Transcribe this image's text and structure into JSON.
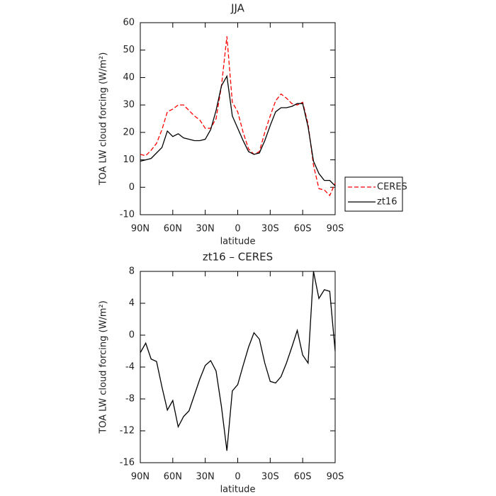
{
  "chart_data": [
    {
      "type": "line",
      "title": "JJA",
      "xlabel": "latitude",
      "ylabel": "TOA LW cloud forcing (W/m²)",
      "x": [
        90,
        85,
        80,
        75,
        70,
        65,
        60,
        55,
        50,
        45,
        40,
        35,
        30,
        25,
        20,
        15,
        10,
        5,
        0,
        -5,
        -10,
        -15,
        -20,
        -25,
        -30,
        -35,
        -40,
        -45,
        -50,
        -55,
        -60,
        -65,
        -70,
        -75,
        -80,
        -85,
        -90
      ],
      "xlim": [
        90,
        -90
      ],
      "xticks": [
        {
          "value": 90,
          "label": "90N"
        },
        {
          "value": 60,
          "label": "60N"
        },
        {
          "value": 30,
          "label": "30N"
        },
        0,
        {
          "value": -30,
          "label": "30S"
        },
        {
          "value": -60,
          "label": "60S"
        },
        {
          "value": -90,
          "label": "90S"
        }
      ],
      "ylim": [
        -10,
        60
      ],
      "yticks": [
        -10,
        0,
        10,
        20,
        30,
        40,
        50,
        60
      ],
      "legend": "right",
      "series": [
        {
          "name": "CERES",
          "color": "#ff0000",
          "line_style": "dashed",
          "values": [
            12,
            11.5,
            13.5,
            16,
            21,
            27.5,
            28.5,
            30,
            30,
            28,
            26,
            24.5,
            21.5,
            21.5,
            25,
            37,
            55,
            31,
            27.5,
            20,
            14,
            12,
            13,
            20,
            26,
            31.5,
            34,
            32.5,
            30.5,
            30,
            31,
            23,
            8,
            -0.5,
            -1,
            -3,
            1.5
          ]
        },
        {
          "name": "zt16",
          "color": "#000000",
          "line_style": "solid",
          "values": [
            9.5,
            10,
            10.5,
            12.5,
            14.5,
            20.5,
            18.5,
            19.5,
            18,
            17.5,
            17,
            17,
            17.5,
            21,
            28,
            37,
            40.5,
            26,
            21.5,
            17,
            13,
            12,
            12.5,
            17,
            22.5,
            27.5,
            29,
            29,
            29.5,
            30.5,
            30.5,
            22,
            9.5,
            5,
            2.5,
            2.5,
            0.5
          ]
        }
      ]
    },
    {
      "type": "line",
      "title": "zt16 – CERES",
      "xlabel": "latitude",
      "ylabel": "TOA LW cloud forcing (W/m²)",
      "x": [
        90,
        85,
        80,
        75,
        70,
        65,
        60,
        55,
        50,
        45,
        40,
        35,
        30,
        25,
        20,
        15,
        10,
        5,
        0,
        -5,
        -10,
        -15,
        -20,
        -25,
        -30,
        -35,
        -40,
        -45,
        -50,
        -55,
        -60,
        -65,
        -70,
        -75,
        -80,
        -85,
        -90
      ],
      "xlim": [
        90,
        -90
      ],
      "xticks": [
        {
          "value": 90,
          "label": "90N"
        },
        {
          "value": 60,
          "label": "60N"
        },
        {
          "value": 30,
          "label": "30N"
        },
        0,
        {
          "value": -30,
          "label": "30S"
        },
        {
          "value": -60,
          "label": "60S"
        },
        {
          "value": -90,
          "label": "90S"
        }
      ],
      "ylim": [
        -16,
        8
      ],
      "yticks": [
        -16,
        -12,
        -8,
        -4,
        0,
        4,
        8
      ],
      "series": [
        {
          "color": "#000000",
          "line_style": "solid",
          "values": [
            -2.2,
            -1,
            -3,
            -3.3,
            -6.5,
            -9.4,
            -8.2,
            -11.5,
            -10.2,
            -9.5,
            -7.5,
            -5.5,
            -3.8,
            -3.2,
            -4.5,
            -9,
            -14.5,
            -7,
            -6.2,
            -3.8,
            -1.5,
            0.3,
            -0.5,
            -3.5,
            -5.8,
            -6,
            -5.2,
            -3.5,
            -1.5,
            0.6,
            -2.5,
            -3.5,
            8,
            4.6,
            5.7,
            5.5,
            -2
          ]
        }
      ]
    }
  ]
}
